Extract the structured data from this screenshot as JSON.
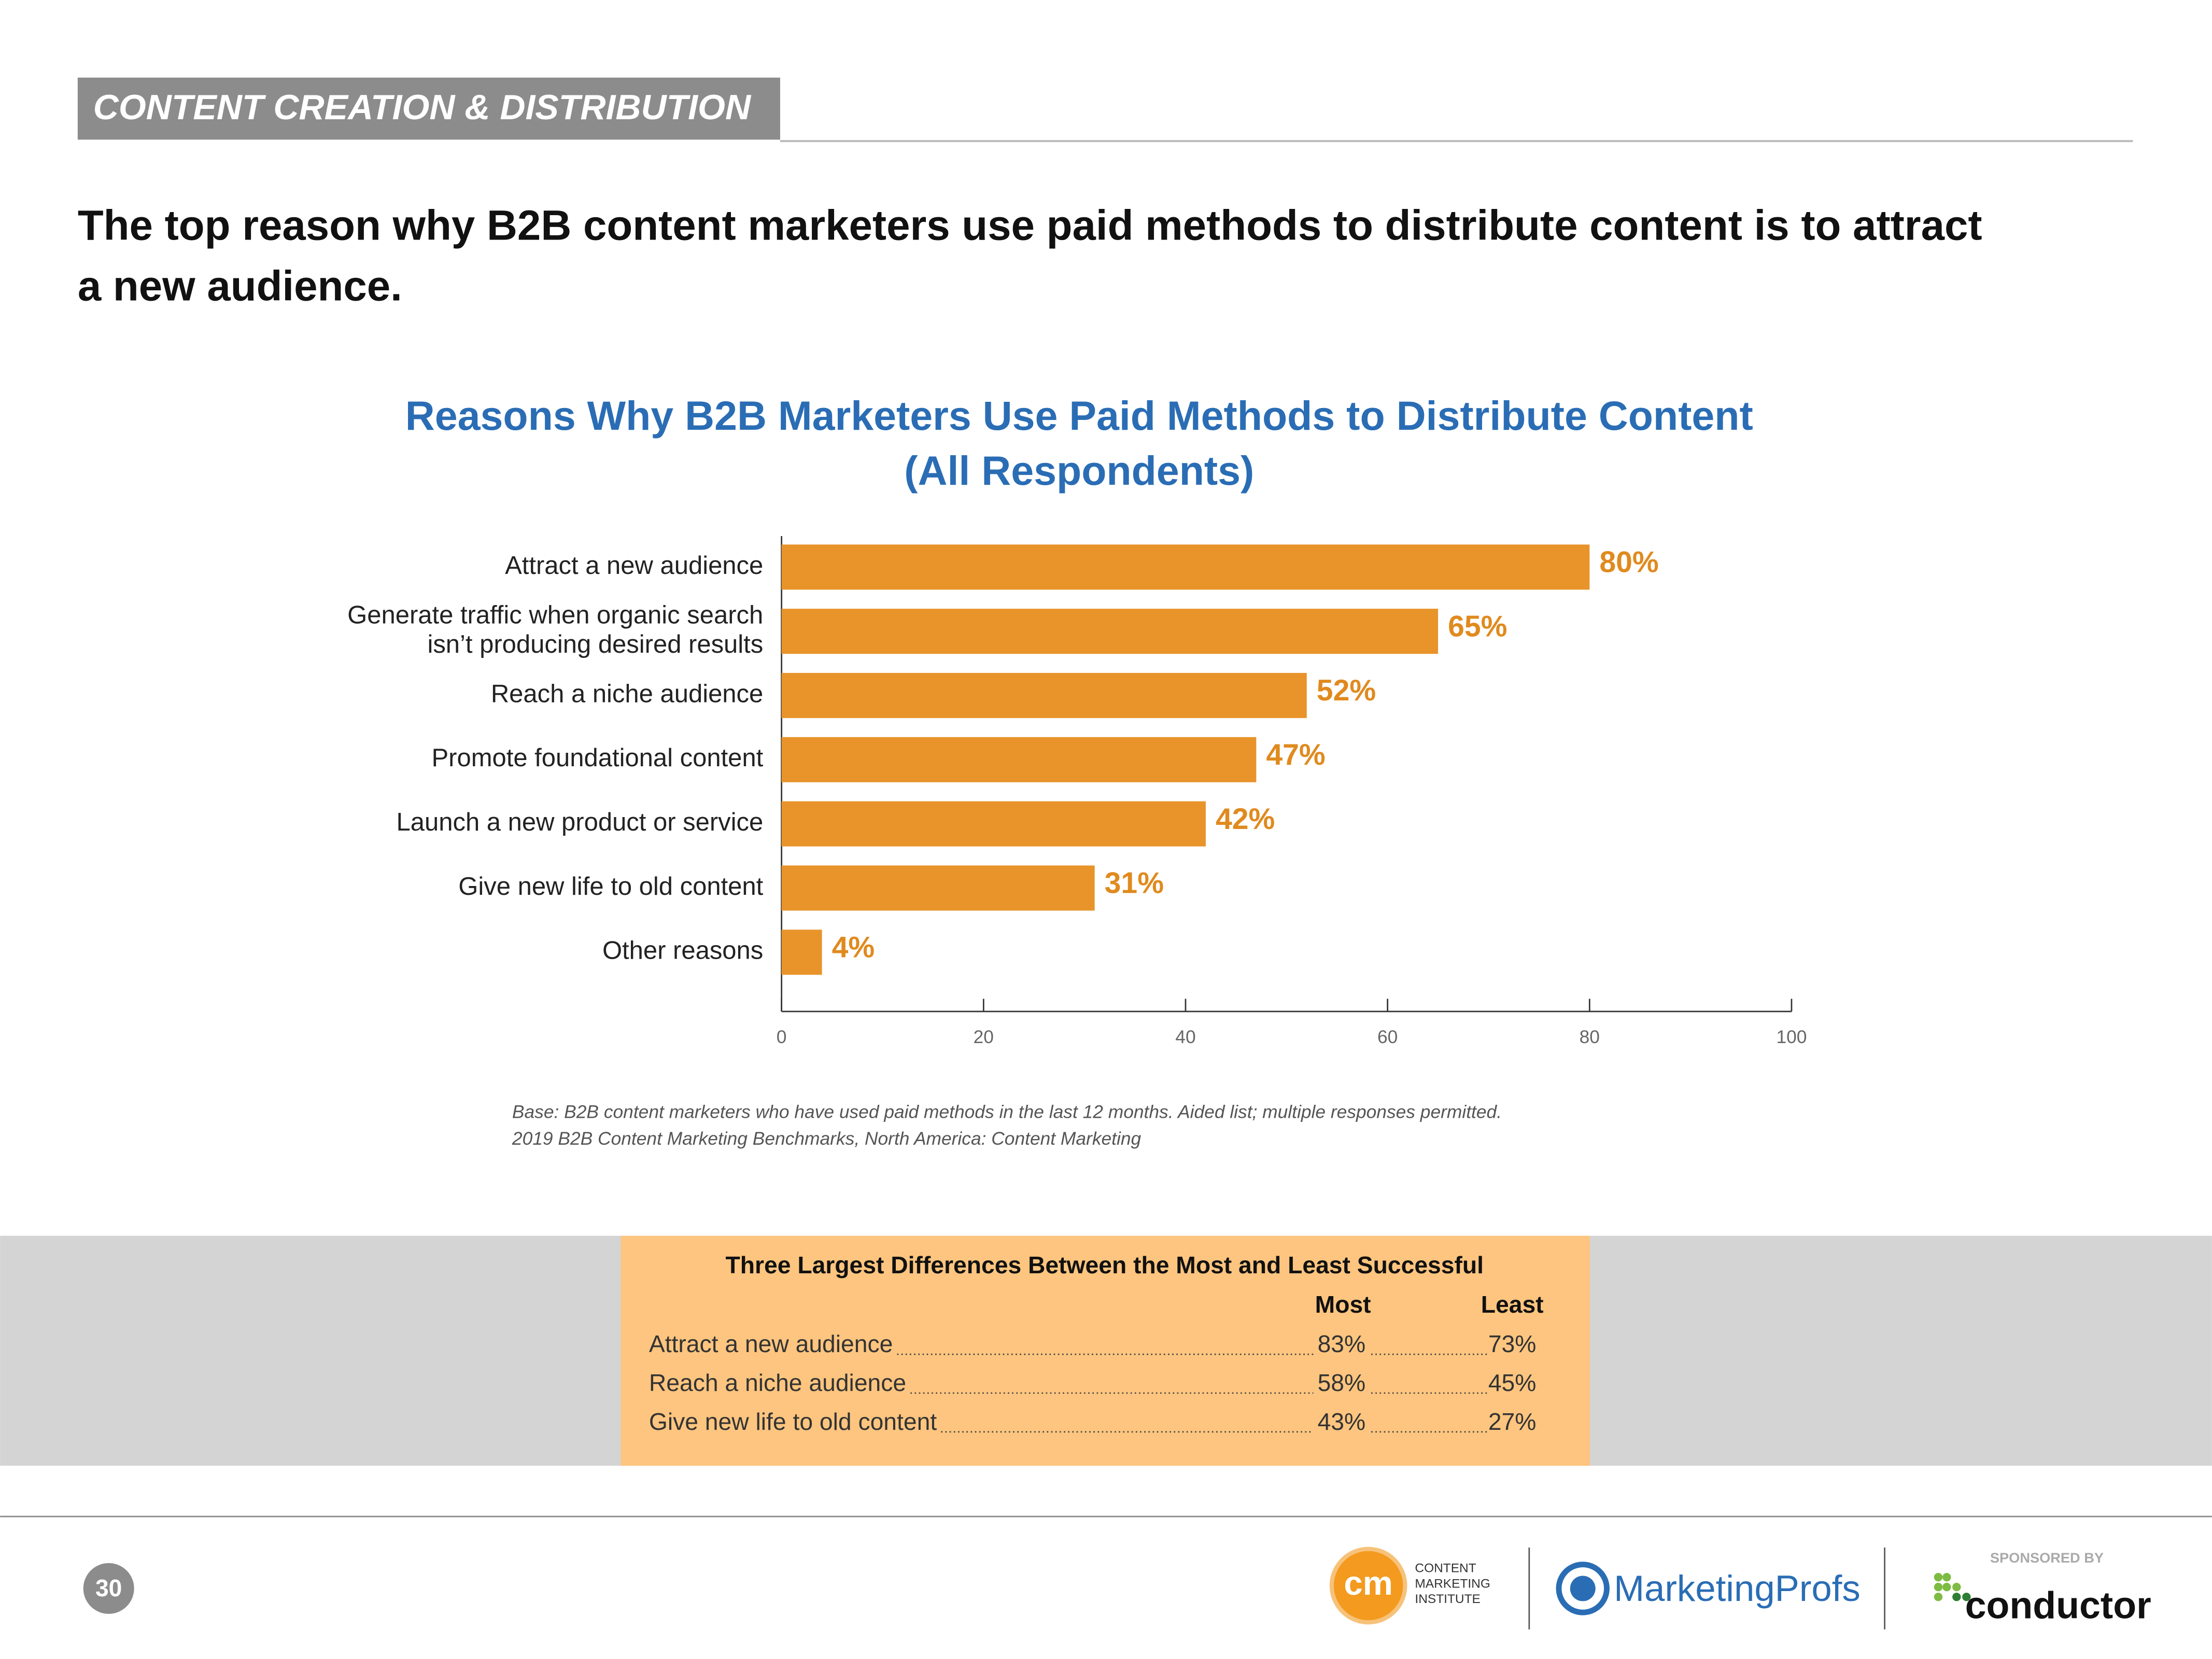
{
  "header": {
    "section": "CONTENT CREATION & DISTRIBUTION",
    "headline": [
      "The top reason why B2B content marketers use paid methods to distribute content is to attract",
      "a new audience."
    ]
  },
  "chart_data": {
    "type": "bar",
    "orientation": "horizontal",
    "title": "Reasons Why B2B Marketers Use Paid Methods to Distribute Content",
    "subtitle": "(All Respondents)",
    "categories": [
      "Attract a new audience",
      "Generate traffic when organic search\nisn’t producing desired results",
      "Reach a niche audience",
      "Promote foundational content",
      "Launch a new product or service",
      "Give new life to old content",
      "Other reasons"
    ],
    "values": [
      80,
      65,
      52,
      47,
      42,
      31,
      4
    ],
    "value_labels": [
      "80%",
      "65%",
      "52%",
      "47%",
      "42%",
      "31%",
      "4%"
    ],
    "color": "#e8942a",
    "xlim": [
      0,
      100
    ],
    "xticks": [
      0,
      20,
      40,
      60,
      80,
      100
    ],
    "notes": [
      "Base: B2B content marketers who have used paid methods in the last 12 months. Aided list; multiple responses permitted.",
      "2019 B2B Content Marketing Benchmarks, North America: Content Marketing"
    ]
  },
  "table": {
    "title": "Three Largest Differences Between the Most and Least Successful",
    "columns": [
      "Most",
      "Least"
    ],
    "rows": [
      [
        "Attract a new audience",
        "83%",
        "73%"
      ],
      [
        "Reach a niche audience",
        "58%",
        "45%"
      ],
      [
        "Give new life to old content",
        "43%",
        "27%"
      ]
    ]
  },
  "footer": {
    "page": "30",
    "cmi_mark": "cm",
    "cmi": [
      "CONTENT",
      "MARKETING",
      "INSTITUTE"
    ],
    "marketingprofs": "MarketingProfs",
    "sponsor_label": "SPONSORED BY",
    "sponsor": "conductor"
  }
}
